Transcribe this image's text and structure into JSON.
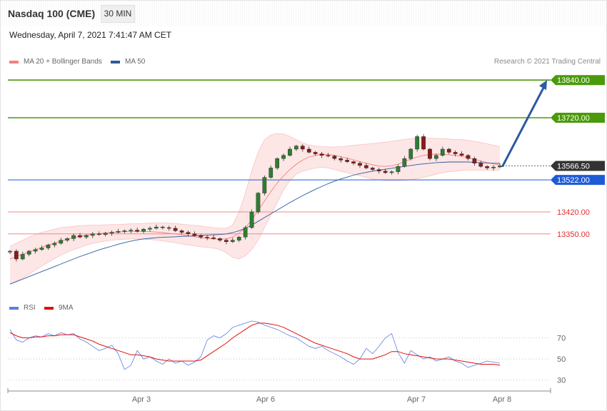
{
  "header": {
    "title": "Nasdaq 100 (CME)",
    "timeframe": "30 MIN",
    "date": "Wednesday, April 7, 2021 7:41:47 AM CET",
    "credit": "Research © 2021 Trading Central"
  },
  "legend": {
    "ma20": {
      "label": "MA 20 + Bollinger Bands",
      "color": "#f47f7f"
    },
    "ma50": {
      "label": "MA 50",
      "color": "#2c5a9c"
    }
  },
  "rsi_legend": {
    "rsi": {
      "label": "RSI",
      "color": "#5b7fe0"
    },
    "ma9": {
      "label": "9MA",
      "color": "#e01010"
    }
  },
  "chart_data": [
    {
      "type": "candlestick",
      "title": "Nasdaq 100 (CME)",
      "timeframe": "30 MIN",
      "x_labels": [
        "Apr 3",
        "Apr 6",
        "Apr 7",
        "Apr 8"
      ],
      "ylim": [
        13170,
        13870
      ],
      "last_price": {
        "label": "13566.50",
        "value": 13566.5,
        "color": "#333333"
      },
      "levels": [
        {
          "label": "13840.00",
          "value": 13840,
          "color": "#4a9a0a",
          "kind": "resistance"
        },
        {
          "label": "13720.00",
          "value": 13720,
          "color": "#4a9a0a",
          "kind": "resistance"
        },
        {
          "label": "13522.00",
          "value": 13522,
          "color": "#1f5ad6",
          "kind": "pivot"
        },
        {
          "label": "13420.00",
          "value": 13420,
          "color": "#e03030",
          "kind": "support"
        },
        {
          "label": "13350.00",
          "value": 13350,
          "color": "#e03030",
          "kind": "support"
        }
      ],
      "target_arrow": {
        "from": 13566.5,
        "to": 13840
      },
      "close_path": [
        13295,
        13270,
        13285,
        13295,
        13300,
        13305,
        13315,
        13320,
        13330,
        13335,
        13345,
        13340,
        13345,
        13350,
        13348,
        13352,
        13355,
        13358,
        13360,
        13362,
        13358,
        13365,
        13368,
        13372,
        13370,
        13368,
        13360,
        13355,
        13350,
        13345,
        13340,
        13338,
        13335,
        13330,
        13325,
        13330,
        13340,
        13370,
        13420,
        13480,
        13530,
        13560,
        13590,
        13600,
        13620,
        13630,
        13620,
        13610,
        13605,
        13600,
        13598,
        13590,
        13585,
        13580,
        13575,
        13568,
        13560,
        13555,
        13550,
        13545,
        13548,
        13565,
        13590,
        13620,
        13660,
        13620,
        13590,
        13600,
        13620,
        13610,
        13605,
        13600,
        13590,
        13575,
        13565,
        13560,
        13563,
        13566.5
      ],
      "ma20_path": [
        13270,
        13278,
        13285,
        13293,
        13300,
        13307,
        13314,
        13321,
        13327,
        13333,
        13338,
        13342,
        13346,
        13349,
        13351,
        13353,
        13355,
        13356,
        13357,
        13358,
        13358,
        13358,
        13357,
        13356,
        13354,
        13352,
        13350,
        13347,
        13344,
        13341,
        13338,
        13336,
        13334,
        13333,
        13334,
        13340,
        13352,
        13370,
        13395,
        13425,
        13455,
        13485,
        13512,
        13535,
        13555,
        13572,
        13585,
        13595,
        13600,
        13603,
        13603,
        13600,
        13596,
        13591,
        13586,
        13580,
        13575,
        13570,
        13566,
        13565,
        13567,
        13572,
        13580,
        13588,
        13595,
        13600,
        13603,
        13604,
        13604,
        13602,
        13600,
        13597,
        13593,
        13588,
        13582,
        13577,
        13573,
        13570
      ],
      "bb_upper_path": [
        13310,
        13320,
        13330,
        13340,
        13348,
        13355,
        13360,
        13365,
        13370,
        13372,
        13374,
        13376,
        13377,
        13378,
        13378,
        13379,
        13380,
        13380,
        13381,
        13382,
        13382,
        13383,
        13384,
        13385,
        13385,
        13384,
        13383,
        13381,
        13379,
        13377,
        13375,
        13372,
        13370,
        13368,
        13368,
        13378,
        13420,
        13480,
        13550,
        13610,
        13650,
        13665,
        13670,
        13668,
        13660,
        13650,
        13640,
        13633,
        13630,
        13628,
        13627,
        13627,
        13628,
        13630,
        13632,
        13634,
        13636,
        13638,
        13640,
        13642,
        13645,
        13648,
        13651,
        13653,
        13654,
        13655,
        13655,
        13654,
        13653,
        13652,
        13651,
        13650,
        13648,
        13645,
        13641,
        13637,
        13632,
        13628
      ],
      "bb_lower_path": [
        13190,
        13200,
        13210,
        13222,
        13235,
        13248,
        13260,
        13272,
        13282,
        13292,
        13300,
        13307,
        13314,
        13320,
        13324,
        13327,
        13330,
        13332,
        13333,
        13334,
        13334,
        13333,
        13332,
        13330,
        13328,
        13325,
        13322,
        13318,
        13315,
        13312,
        13309,
        13307,
        13305,
        13300,
        13290,
        13275,
        13270,
        13280,
        13300,
        13330,
        13370,
        13410,
        13450,
        13490,
        13520,
        13540,
        13550,
        13555,
        13560,
        13562,
        13560,
        13555,
        13550,
        13545,
        13540,
        13535,
        13530,
        13525,
        13522,
        13520,
        13520,
        13520,
        13521,
        13523,
        13526,
        13530,
        13535,
        13540,
        13545,
        13548,
        13550,
        13552,
        13553,
        13553,
        13553,
        13553,
        13553,
        13553
      ],
      "ma50_path": [
        13190,
        13198,
        13206,
        13214,
        13222,
        13230,
        13238,
        13246,
        13254,
        13262,
        13270,
        13278,
        13285,
        13292,
        13299,
        13305,
        13311,
        13317,
        13322,
        13327,
        13331,
        13334,
        13336,
        13338,
        13339,
        13340,
        13341,
        13342,
        13343,
        13344,
        13345,
        13346,
        13347,
        13348,
        13350,
        13354,
        13360,
        13368,
        13378,
        13390,
        13402,
        13414,
        13426,
        13438,
        13450,
        13461,
        13472,
        13482,
        13492,
        13501,
        13510,
        13518,
        13525,
        13531,
        13537,
        13542,
        13546,
        13550,
        13553,
        13556,
        13559,
        13562,
        13565,
        13568,
        13571,
        13573,
        13575,
        13577,
        13578,
        13579,
        13579,
        13579,
        13579,
        13578,
        13577,
        13576,
        13575,
        13575
      ]
    },
    {
      "type": "line",
      "title": "RSI",
      "x_labels": [
        "Apr 3",
        "Apr 6",
        "Apr 7",
        "Apr 8"
      ],
      "yticks": [
        70,
        50,
        30
      ],
      "ylim": [
        25,
        90
      ],
      "series": [
        {
          "name": "RSI",
          "color": "#5b7fe0",
          "values": [
            78,
            68,
            66,
            70,
            72,
            71,
            74,
            72,
            75,
            73,
            74,
            69,
            66,
            62,
            58,
            60,
            63,
            55,
            40,
            44,
            58,
            50,
            52,
            48,
            45,
            50,
            46,
            48,
            44,
            47,
            52,
            68,
            72,
            70,
            74,
            80,
            82,
            84,
            86,
            85,
            82,
            80,
            78,
            75,
            72,
            70,
            66,
            62,
            60,
            62,
            58,
            55,
            52,
            48,
            45,
            50,
            60,
            55,
            62,
            70,
            74,
            56,
            46,
            58,
            54,
            50,
            52,
            48,
            50,
            52,
            48,
            46,
            42,
            44,
            46,
            48,
            47,
            46
          ]
        },
        {
          "name": "9MA",
          "color": "#e01010",
          "values": [
            75,
            72,
            70,
            70,
            71,
            71,
            72,
            72,
            73,
            73,
            73,
            71,
            69,
            67,
            64,
            62,
            60,
            58,
            56,
            54,
            54,
            53,
            52,
            50,
            49,
            48,
            48,
            48,
            48,
            48,
            49,
            53,
            57,
            61,
            65,
            70,
            74,
            78,
            82,
            84,
            84,
            83,
            82,
            80,
            77,
            74,
            71,
            68,
            65,
            63,
            61,
            59,
            57,
            55,
            52,
            50,
            50,
            50,
            52,
            54,
            57,
            57,
            55,
            54,
            53,
            52,
            51,
            50,
            50,
            50,
            49,
            48,
            47,
            46,
            45,
            45,
            45,
            44
          ]
        }
      ]
    }
  ]
}
